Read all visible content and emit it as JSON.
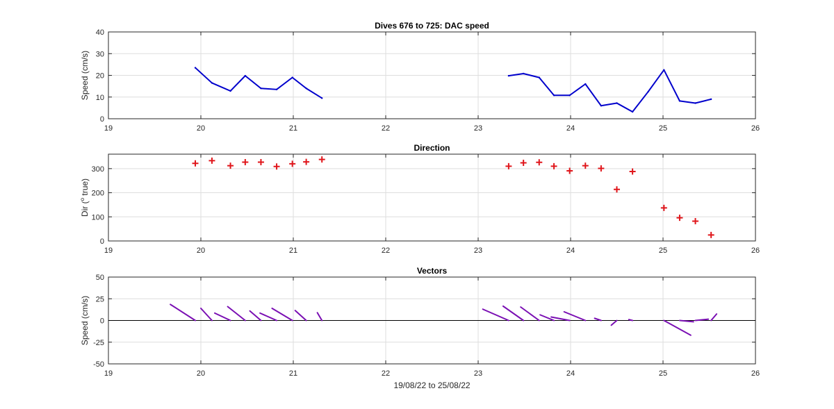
{
  "figure": {
    "xlabel": "19/08/22 to 25/08/22"
  },
  "colors": {
    "speed": "#0000cc",
    "direction": "#e0161b",
    "vectors": "#7a0fb3",
    "grid": "#dedede",
    "axis": "#262626"
  },
  "chart_data": [
    {
      "type": "line",
      "title": "Dives 676 to 725: DAC speed",
      "xlabel": "",
      "ylabel": "Speed (cm/s)",
      "xlim": [
        19,
        26
      ],
      "ylim": [
        0,
        40
      ],
      "xticks": [
        19,
        20,
        21,
        22,
        23,
        24,
        25,
        26
      ],
      "yticks": [
        0,
        10,
        20,
        30,
        40
      ],
      "grid": true,
      "series": [
        {
          "segments": [
            [
              [
                19.94,
                23.5
              ],
              [
                20.12,
                16.5
              ],
              [
                20.32,
                12.8
              ],
              [
                20.48,
                19.8
              ],
              [
                20.65,
                14.0
              ],
              [
                20.82,
                13.5
              ],
              [
                20.99,
                19.0
              ],
              [
                21.14,
                14.0
              ],
              [
                21.31,
                9.5
              ]
            ],
            [
              [
                23.33,
                19.8
              ],
              [
                23.49,
                20.8
              ],
              [
                23.66,
                19.0
              ],
              [
                23.82,
                10.8
              ],
              [
                23.99,
                10.8
              ],
              [
                24.16,
                16.0
              ],
              [
                24.33,
                6.0
              ],
              [
                24.5,
                7.2
              ],
              [
                24.67,
                3.2
              ],
              [
                24.84,
                12.5
              ],
              [
                25.01,
                22.5
              ],
              [
                25.18,
                8.2
              ],
              [
                25.35,
                7.2
              ],
              [
                25.52,
                9.0
              ]
            ]
          ]
        }
      ]
    },
    {
      "type": "scatter",
      "title": "Direction",
      "xlabel": "",
      "ylabel": "Dir (o true)",
      "xlim": [
        19,
        26
      ],
      "ylim": [
        0,
        360
      ],
      "xticks": [
        19,
        20,
        21,
        22,
        23,
        24,
        25,
        26
      ],
      "yticks": [
        0,
        100,
        200,
        300
      ],
      "grid": true,
      "marker": "+",
      "series": [
        {
          "points": [
            [
              19.94,
              322
            ],
            [
              20.12,
              333
            ],
            [
              20.32,
              312
            ],
            [
              20.48,
              327
            ],
            [
              20.65,
              327
            ],
            [
              20.82,
              309
            ],
            [
              20.99,
              320
            ],
            [
              21.14,
              328
            ],
            [
              21.31,
              338
            ],
            [
              23.33,
              310
            ],
            [
              23.49,
              324
            ],
            [
              23.66,
              326
            ],
            [
              23.82,
              310
            ],
            [
              23.99,
              291
            ],
            [
              24.16,
              312
            ],
            [
              24.33,
              301
            ],
            [
              24.5,
              214
            ],
            [
              24.67,
              288
            ],
            [
              25.01,
              137
            ],
            [
              25.18,
              96
            ],
            [
              25.35,
              82
            ],
            [
              25.52,
              25
            ]
          ]
        }
      ]
    },
    {
      "type": "line",
      "title": "Vectors",
      "xlabel": "19/08/22 to 25/08/22",
      "ylabel": "Speed (cm/s)",
      "xlim": [
        19,
        26
      ],
      "ylim": [
        -50,
        50
      ],
      "xticks": [
        19,
        20,
        21,
        22,
        23,
        24,
        25,
        26
      ],
      "yticks": [
        -50,
        -25,
        0,
        25,
        50
      ],
      "grid": true,
      "baseline": 0,
      "series": [
        {
          "vectors": [
            [
              [
                19.94,
                0
              ],
              [
                19.67,
                18.5
              ]
            ],
            [
              [
                20.12,
                0
              ],
              [
                20.0,
                14.0
              ]
            ],
            [
              [
                20.32,
                0
              ],
              [
                20.15,
                8.5
              ]
            ],
            [
              [
                20.48,
                0
              ],
              [
                20.29,
                16.0
              ]
            ],
            [
              [
                20.65,
                0
              ],
              [
                20.53,
                11.0
              ]
            ],
            [
              [
                20.82,
                0
              ],
              [
                20.64,
                8.5
              ]
            ],
            [
              [
                20.99,
                0
              ],
              [
                20.77,
                14.0
              ]
            ],
            [
              [
                21.14,
                0
              ],
              [
                21.02,
                11.5
              ]
            ],
            [
              [
                21.31,
                0
              ],
              [
                21.26,
                9.0
              ]
            ],
            [
              [
                23.33,
                0
              ],
              [
                23.05,
                13.0
              ]
            ],
            [
              [
                23.49,
                0
              ],
              [
                23.27,
                16.5
              ]
            ],
            [
              [
                23.66,
                0
              ],
              [
                23.46,
                15.5
              ]
            ],
            [
              [
                23.82,
                0
              ],
              [
                23.67,
                6.5
              ]
            ],
            [
              [
                23.99,
                0
              ],
              [
                23.79,
                4.0
              ]
            ],
            [
              [
                24.16,
                0
              ],
              [
                23.93,
                10.0
              ]
            ],
            [
              [
                24.33,
                0
              ],
              [
                24.26,
                2.5
              ]
            ],
            [
              [
                24.5,
                0
              ],
              [
                24.44,
                -5.5
              ]
            ],
            [
              [
                24.67,
                0
              ],
              [
                24.63,
                1.0
              ]
            ],
            [
              [
                25.01,
                0
              ],
              [
                25.3,
                -17.0
              ]
            ],
            [
              [
                25.18,
                0
              ],
              [
                25.33,
                -1.5
              ]
            ],
            [
              [
                25.35,
                0
              ],
              [
                25.49,
                1.5
              ]
            ],
            [
              [
                25.52,
                0
              ],
              [
                25.58,
                7.5
              ]
            ]
          ]
        }
      ]
    }
  ]
}
